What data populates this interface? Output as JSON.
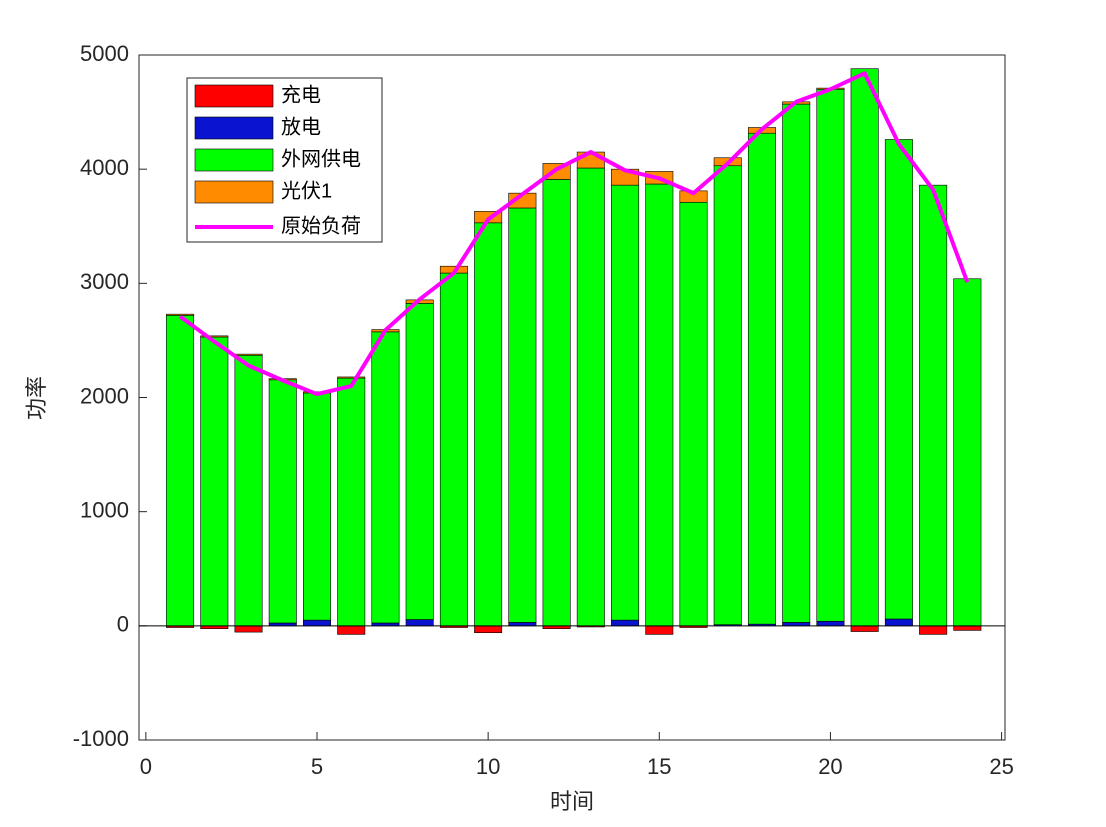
{
  "chart_data": {
    "type": "bar",
    "stacked": true,
    "x_label": "时间",
    "y_label": "功率",
    "x": [
      1,
      2,
      3,
      4,
      5,
      6,
      7,
      8,
      9,
      10,
      11,
      12,
      13,
      14,
      15,
      16,
      17,
      18,
      19,
      20,
      21,
      22,
      23,
      24
    ],
    "xlim": [
      -0.2,
      25.1
    ],
    "xticks": [
      0,
      5,
      10,
      15,
      20,
      25
    ],
    "ylim": [
      -1000,
      5000
    ],
    "yticks": [
      -1000,
      0,
      1000,
      2000,
      3000,
      4000,
      5000
    ],
    "series": [
      {
        "name": "充电",
        "color": "#ff0000",
        "type": "bar",
        "values": [
          -15,
          -25,
          -55,
          0,
          0,
          -75,
          0,
          0,
          -15,
          -60,
          0,
          -25,
          -10,
          0,
          -75,
          -15,
          0,
          0,
          0,
          0,
          -50,
          0,
          -75,
          -40
        ]
      },
      {
        "name": "放电",
        "color": "#0a14d0",
        "type": "bar",
        "values": [
          0,
          0,
          0,
          25,
          50,
          0,
          25,
          55,
          0,
          0,
          30,
          0,
          0,
          50,
          0,
          0,
          10,
          15,
          30,
          40,
          0,
          60,
          0,
          0
        ]
      },
      {
        "name": "外网供电",
        "color": "#00ff00",
        "type": "bar",
        "values": [
          2720,
          2530,
          2370,
          2130,
          1990,
          2170,
          2550,
          2770,
          3090,
          3530,
          3630,
          3910,
          4010,
          3810,
          3870,
          3710,
          4020,
          4300,
          4540,
          4660,
          4880,
          4200,
          3860,
          3040
        ]
      },
      {
        "name": "光伏1",
        "color": "#ff8c00",
        "type": "bar",
        "values": [
          10,
          10,
          10,
          10,
          10,
          10,
          20,
          30,
          60,
          100,
          130,
          140,
          140,
          140,
          110,
          100,
          70,
          50,
          20,
          10,
          0,
          0,
          0,
          0
        ]
      },
      {
        "name": "原始负荷",
        "color": "#ff00ff",
        "type": "line",
        "values": [
          2710,
          2490,
          2280,
          2150,
          2030,
          2100,
          2590,
          2860,
          3090,
          3560,
          3780,
          4000,
          4150,
          3990,
          3920,
          3790,
          4050,
          4350,
          4590,
          4700,
          4840,
          4220,
          3820,
          3010
        ]
      }
    ]
  }
}
